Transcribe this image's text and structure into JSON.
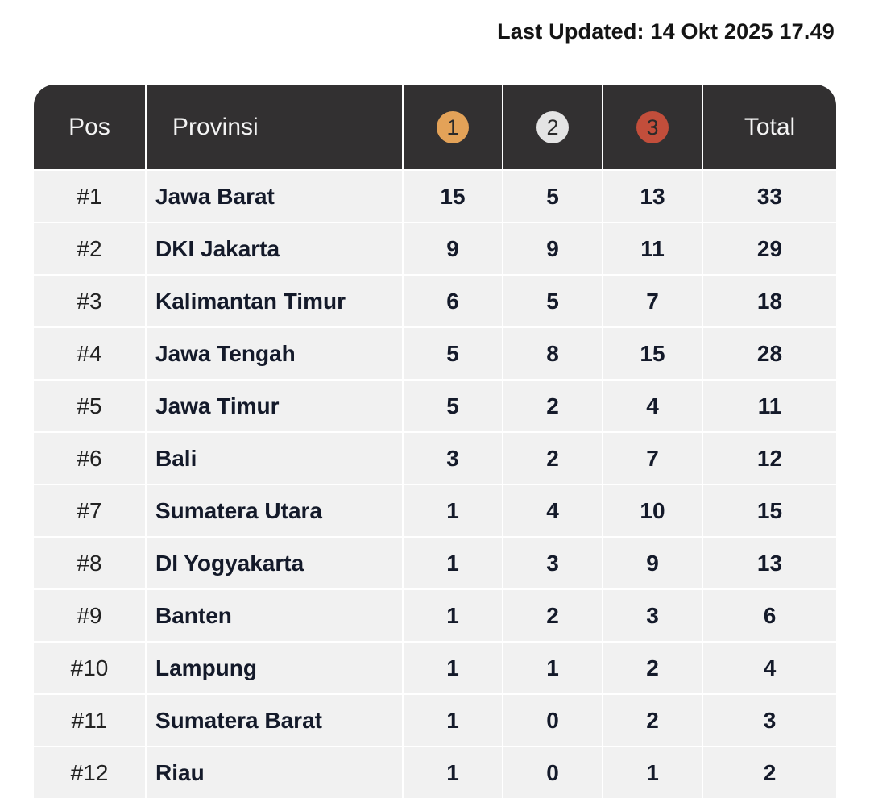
{
  "last_updated": "Last Updated: 14 Okt 2025 17.49",
  "header": {
    "pos": "Pos",
    "provinsi": "Provinsi",
    "gold": "1",
    "silver": "2",
    "bronze": "3",
    "total": "Total"
  },
  "colors": {
    "header_bg": "#323031",
    "row_bg": "#f1f1f1",
    "gold": "#e3a258",
    "silver": "#e4e4e4",
    "bronze": "#c24e3b"
  },
  "rows": [
    {
      "pos": "#1",
      "provinsi": "Jawa Barat",
      "gold": "15",
      "silver": "5",
      "bronze": "13",
      "total": "33"
    },
    {
      "pos": "#2",
      "provinsi": "DKI Jakarta",
      "gold": "9",
      "silver": "9",
      "bronze": "11",
      "total": "29"
    },
    {
      "pos": "#3",
      "provinsi": "Kalimantan Timur",
      "gold": "6",
      "silver": "5",
      "bronze": "7",
      "total": "18"
    },
    {
      "pos": "#4",
      "provinsi": "Jawa Tengah",
      "gold": "5",
      "silver": "8",
      "bronze": "15",
      "total": "28"
    },
    {
      "pos": "#5",
      "provinsi": "Jawa Timur",
      "gold": "5",
      "silver": "2",
      "bronze": "4",
      "total": "11"
    },
    {
      "pos": "#6",
      "provinsi": "Bali",
      "gold": "3",
      "silver": "2",
      "bronze": "7",
      "total": "12"
    },
    {
      "pos": "#7",
      "provinsi": "Sumatera Utara",
      "gold": "1",
      "silver": "4",
      "bronze": "10",
      "total": "15"
    },
    {
      "pos": "#8",
      "provinsi": "DI Yogyakarta",
      "gold": "1",
      "silver": "3",
      "bronze": "9",
      "total": "13"
    },
    {
      "pos": "#9",
      "provinsi": "Banten",
      "gold": "1",
      "silver": "2",
      "bronze": "3",
      "total": "6"
    },
    {
      "pos": "#10",
      "provinsi": "Lampung",
      "gold": "1",
      "silver": "1",
      "bronze": "2",
      "total": "4"
    },
    {
      "pos": "#11",
      "provinsi": "Sumatera Barat",
      "gold": "1",
      "silver": "0",
      "bronze": "2",
      "total": "3"
    },
    {
      "pos": "#12",
      "provinsi": "Riau",
      "gold": "1",
      "silver": "0",
      "bronze": "1",
      "total": "2"
    }
  ]
}
